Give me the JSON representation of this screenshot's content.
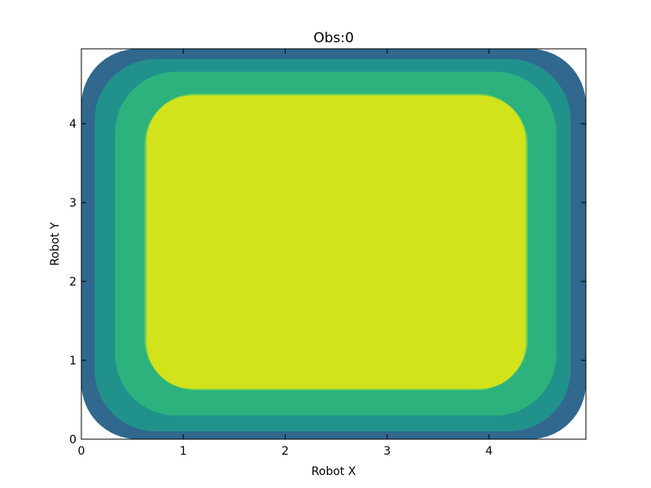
{
  "chart_data": {
    "type": "heatmap",
    "subtype": "filled-contour",
    "title": "Obs:0",
    "xlabel": "Robot X",
    "ylabel": "Robot Y",
    "xlim": [
      0,
      4.95
    ],
    "ylim": [
      0,
      4.95
    ],
    "x_ticks": [
      0,
      1,
      2,
      3,
      4
    ],
    "y_ticks": [
      0,
      1,
      2,
      3,
      4
    ],
    "x_tick_labels": [
      "0",
      "1",
      "2",
      "3",
      "4"
    ],
    "y_tick_labels": [
      "0",
      "1",
      "2",
      "3",
      "4"
    ],
    "grid": false,
    "legend": "none",
    "colormap": "viridis",
    "contour_levels": [
      {
        "level": 0,
        "color": "#433e85",
        "x_range": [
          0.0,
          4.95
        ],
        "y_range": [
          0.0,
          4.95
        ],
        "corner_radius": 0.8
      },
      {
        "level": 1,
        "color": "#31688e",
        "x_range": [
          0.0,
          4.95
        ],
        "y_range": [
          0.0,
          4.95
        ],
        "corner_radius": 0.55
      },
      {
        "level": 2,
        "color": "#21918c",
        "x_range": [
          0.13,
          4.8
        ],
        "y_range": [
          0.1,
          4.82
        ],
        "corner_radius": 0.6
      },
      {
        "level": 3,
        "color": "#2db27d",
        "x_range": [
          0.33,
          4.66
        ],
        "y_range": [
          0.3,
          4.66
        ],
        "corner_radius": 0.6
      },
      {
        "level": 4,
        "color": "#70cf57",
        "x_range": [
          0.62,
          4.38
        ],
        "y_range": [
          0.62,
          4.38
        ],
        "corner_radius": 0.5
      },
      {
        "level": 5,
        "color": "#d2e21b",
        "x_range": [
          0.64,
          4.36
        ],
        "y_range": [
          0.64,
          4.36
        ],
        "corner_radius": 0.45
      }
    ]
  }
}
